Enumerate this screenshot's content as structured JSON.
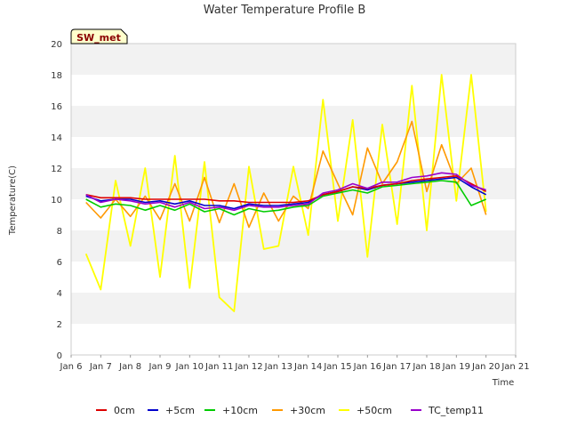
{
  "chart_data": {
    "type": "line",
    "title": "Water Temperature Profile B",
    "xlabel": "Time",
    "ylabel": "Temperature(C)",
    "badge": "SW_met",
    "x_ticks": [
      "Jan 6",
      "Jan 7",
      "Jan 8",
      "Jan 9",
      "Jan 10",
      "Jan 11",
      "Jan 12",
      "Jan 13",
      "Jan 14",
      "Jan 15",
      "Jan 16",
      "Jan 17",
      "Jan 18",
      "Jan 19",
      "Jan 20",
      "Jan 21"
    ],
    "xlim": [
      6,
      21
    ],
    "ylim": [
      0,
      20
    ],
    "y_ticks": [
      0,
      2,
      4,
      6,
      8,
      10,
      12,
      14,
      16,
      18,
      20
    ],
    "grid": "horizontal bands",
    "legend_position": "bottom",
    "x": [
      6.5,
      7.0,
      7.5,
      8.0,
      8.5,
      9.0,
      9.5,
      10.0,
      10.5,
      11.0,
      11.5,
      12.0,
      12.5,
      13.0,
      13.5,
      14.0,
      14.5,
      15.0,
      15.5,
      16.0,
      16.5,
      17.0,
      17.5,
      18.0,
      18.5,
      19.0,
      19.5,
      20.0
    ],
    "series": [
      {
        "name": "0cm",
        "color": "#dd0000",
        "values": [
          10.3,
          10.1,
          10.1,
          10.1,
          10.0,
          10.0,
          10.0,
          10.0,
          10.0,
          9.9,
          9.9,
          9.8,
          9.8,
          9.8,
          9.8,
          9.9,
          10.3,
          10.5,
          10.8,
          10.7,
          10.9,
          11.0,
          11.2,
          11.3,
          11.4,
          11.5,
          11.0,
          10.5
        ]
      },
      {
        "name": "+5cm",
        "color": "#0000cc",
        "values": [
          10.2,
          9.9,
          10.0,
          10.0,
          9.8,
          9.9,
          9.7,
          9.9,
          9.6,
          9.6,
          9.4,
          9.7,
          9.6,
          9.6,
          9.7,
          9.8,
          10.3,
          10.5,
          10.8,
          10.6,
          10.9,
          11.0,
          11.1,
          11.2,
          11.3,
          11.4,
          10.8,
          10.3
        ]
      },
      {
        "name": "+10cm",
        "color": "#00cc00",
        "values": [
          10.0,
          9.5,
          9.7,
          9.6,
          9.3,
          9.6,
          9.3,
          9.7,
          9.2,
          9.4,
          9.0,
          9.4,
          9.2,
          9.3,
          9.5,
          9.6,
          10.2,
          10.4,
          10.6,
          10.4,
          10.8,
          10.9,
          11.0,
          11.1,
          11.2,
          11.1,
          9.6,
          10.0
        ]
      },
      {
        "name": "+30cm",
        "color": "#ff9900",
        "values": [
          9.8,
          8.8,
          10.0,
          8.9,
          10.2,
          8.7,
          11.0,
          8.6,
          11.4,
          8.5,
          11.0,
          8.2,
          10.4,
          8.6,
          10.2,
          9.4,
          13.1,
          11.0,
          9.0,
          13.3,
          11.0,
          12.4,
          15.0,
          10.5,
          13.5,
          11.0,
          12.0,
          9.0
        ]
      },
      {
        "name": "+50cm",
        "color": "#ffff00",
        "values": [
          6.5,
          4.2,
          11.2,
          7.0,
          12.0,
          5.0,
          12.8,
          4.3,
          12.4,
          3.7,
          2.8,
          12.1,
          6.8,
          7.0,
          12.1,
          7.7,
          16.4,
          8.6,
          15.1,
          6.3,
          14.8,
          8.4,
          17.3,
          8.0,
          18.0,
          9.9,
          18.0,
          9.2
        ]
      },
      {
        "name": "TC_temp11",
        "color": "#9900cc",
        "values": [
          10.3,
          9.8,
          10.0,
          9.9,
          9.7,
          9.8,
          9.5,
          9.8,
          9.4,
          9.5,
          9.3,
          9.6,
          9.5,
          9.5,
          9.6,
          9.7,
          10.4,
          10.6,
          11.0,
          10.7,
          11.1,
          11.1,
          11.4,
          11.5,
          11.7,
          11.6,
          10.9,
          10.6
        ]
      }
    ]
  }
}
